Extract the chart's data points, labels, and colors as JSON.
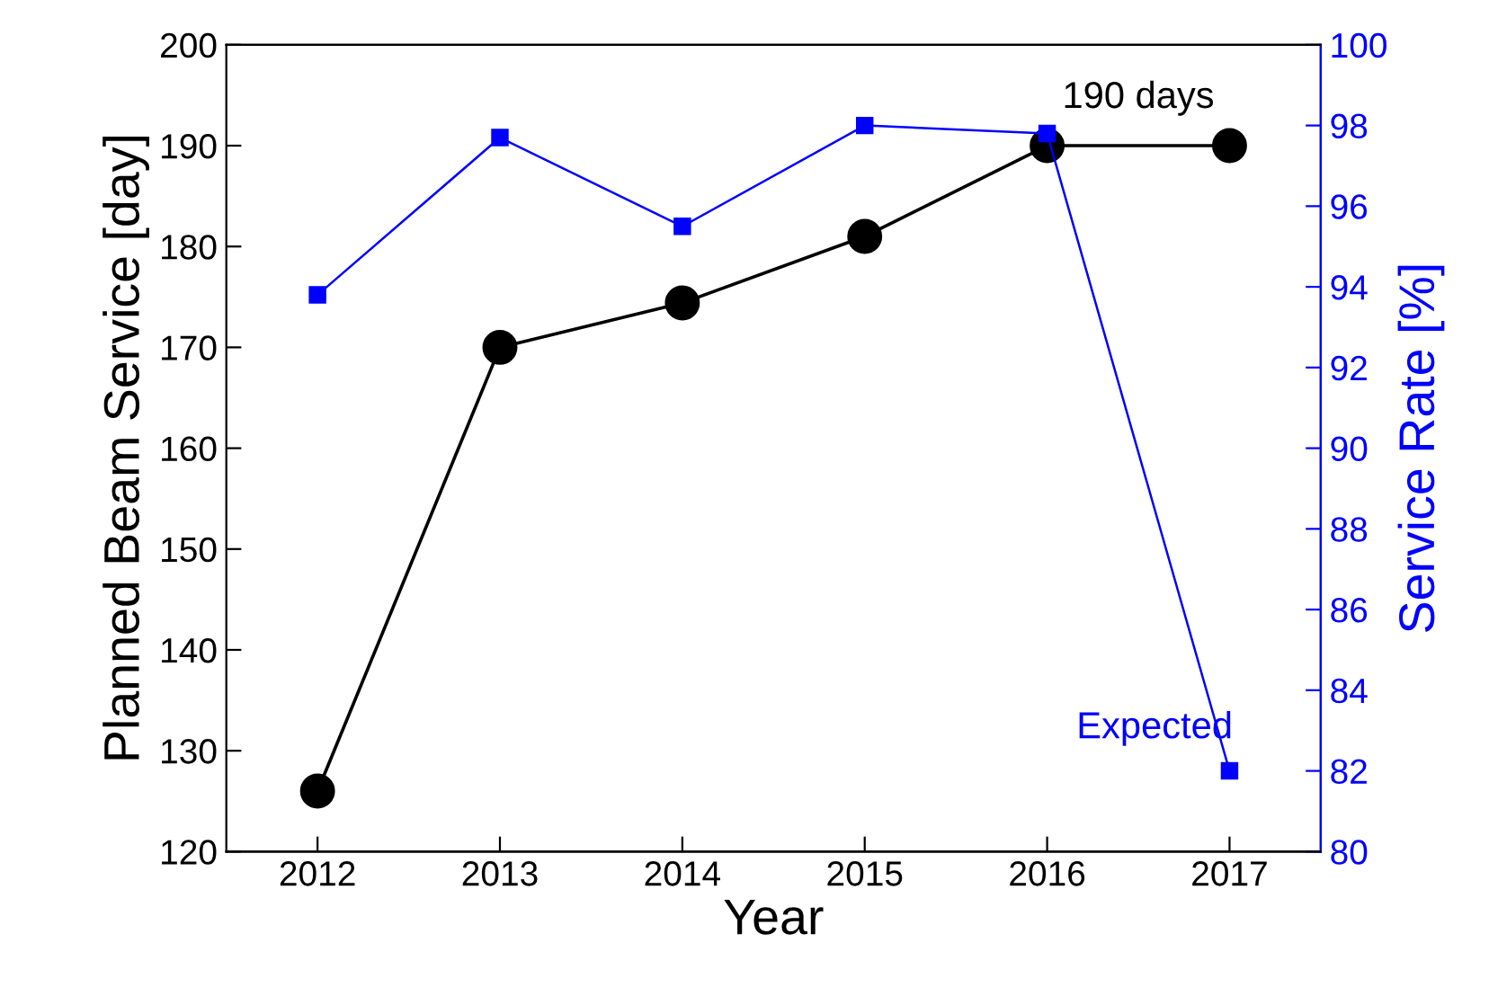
{
  "chart_data": {
    "type": "line",
    "xlabel": "Year",
    "ylabel": "Planned Beam Service [day]",
    "y2label": "Service Rate [%]",
    "x": [
      2012,
      2013,
      2014,
      2015,
      2016,
      2017
    ],
    "xlim": [
      2011.5,
      2017.5
    ],
    "xticks": [
      2012,
      2013,
      2014,
      2015,
      2016,
      2017
    ],
    "ylim": [
      120,
      200
    ],
    "yticks": [
      120,
      130,
      140,
      150,
      160,
      170,
      180,
      190,
      200
    ],
    "y2lim": [
      80,
      100
    ],
    "y2ticks": [
      80,
      82,
      84,
      86,
      88,
      90,
      92,
      94,
      96,
      98,
      100
    ],
    "series": [
      {
        "color": "#000000",
        "marker": "circle",
        "values": [
          126,
          170,
          174.4,
          181,
          190,
          190
        ]
      },
      {
        "color": "#0000ff",
        "marker": "square",
        "axis": "y2",
        "values": [
          93.8,
          97.7,
          95.5,
          98.0,
          97.8,
          82.0
        ]
      }
    ],
    "annotations": [
      {
        "text": "190 days",
        "x": 2016.5,
        "y": 190
      },
      "Expected"
    ],
    "grid": false,
    "legend": false
  }
}
